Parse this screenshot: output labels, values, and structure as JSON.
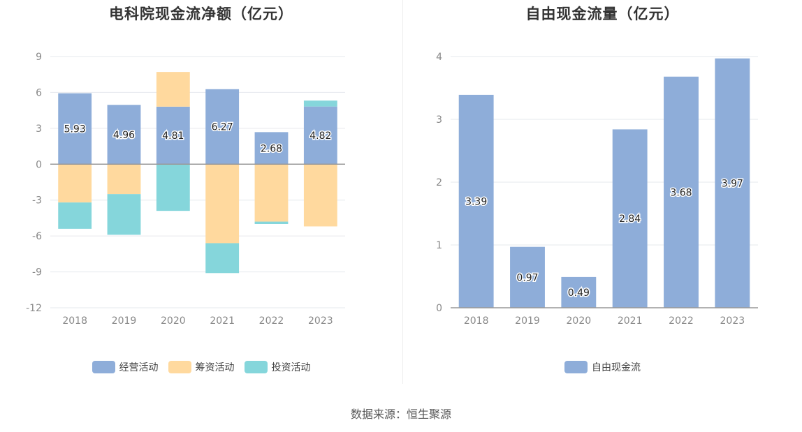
{
  "colors": {
    "operating": "#8eadd9",
    "financing": "#ffd99e",
    "investing": "#85d6db",
    "fcf": "#8eadd9",
    "grid": "#e6e8ee",
    "axis": "#999999"
  },
  "left_chart": {
    "title": "电科院现金流净额（亿元）",
    "legend": [
      "经营活动",
      "筹资活动",
      "投资活动"
    ]
  },
  "right_chart": {
    "title": "自由现金流量（亿元）",
    "legend": [
      "自由现金流"
    ]
  },
  "source": "数据来源：恒生聚源",
  "chart_data": [
    {
      "type": "bar",
      "stacked": true,
      "title": "电科院现金流净额（亿元）",
      "categories": [
        "2018",
        "2019",
        "2020",
        "2021",
        "2022",
        "2023"
      ],
      "ylim": [
        -12,
        9
      ],
      "yticks": [
        9,
        6,
        3,
        0,
        -3,
        -6,
        -9,
        -12
      ],
      "series": [
        {
          "name": "经营活动",
          "values": [
            5.93,
            4.96,
            4.81,
            6.27,
            2.68,
            4.82
          ],
          "labels": [
            "5.93",
            "4.96",
            "4.81",
            "6.27",
            "2.68",
            "4.82"
          ]
        },
        {
          "name": "筹资活动",
          "values": [
            -3.2,
            -2.5,
            2.9,
            -6.6,
            -4.8,
            -5.2
          ]
        },
        {
          "name": "投资活动",
          "values": [
            -2.2,
            -3.4,
            -3.9,
            -2.5,
            -0.2,
            0.5
          ]
        }
      ],
      "grid": true,
      "legend_position": "bottom"
    },
    {
      "type": "bar",
      "title": "自由现金流量（亿元）",
      "categories": [
        "2018",
        "2019",
        "2020",
        "2021",
        "2022",
        "2023"
      ],
      "ylim": [
        0,
        4
      ],
      "yticks": [
        4,
        3,
        2,
        1,
        0
      ],
      "series": [
        {
          "name": "自由现金流",
          "values": [
            3.39,
            0.97,
            0.49,
            2.84,
            3.68,
            3.97
          ],
          "labels": [
            "3.39",
            "0.97",
            "0.49",
            "2.84",
            "3.68",
            "3.97"
          ]
        }
      ],
      "grid": true,
      "legend_position": "bottom"
    }
  ]
}
